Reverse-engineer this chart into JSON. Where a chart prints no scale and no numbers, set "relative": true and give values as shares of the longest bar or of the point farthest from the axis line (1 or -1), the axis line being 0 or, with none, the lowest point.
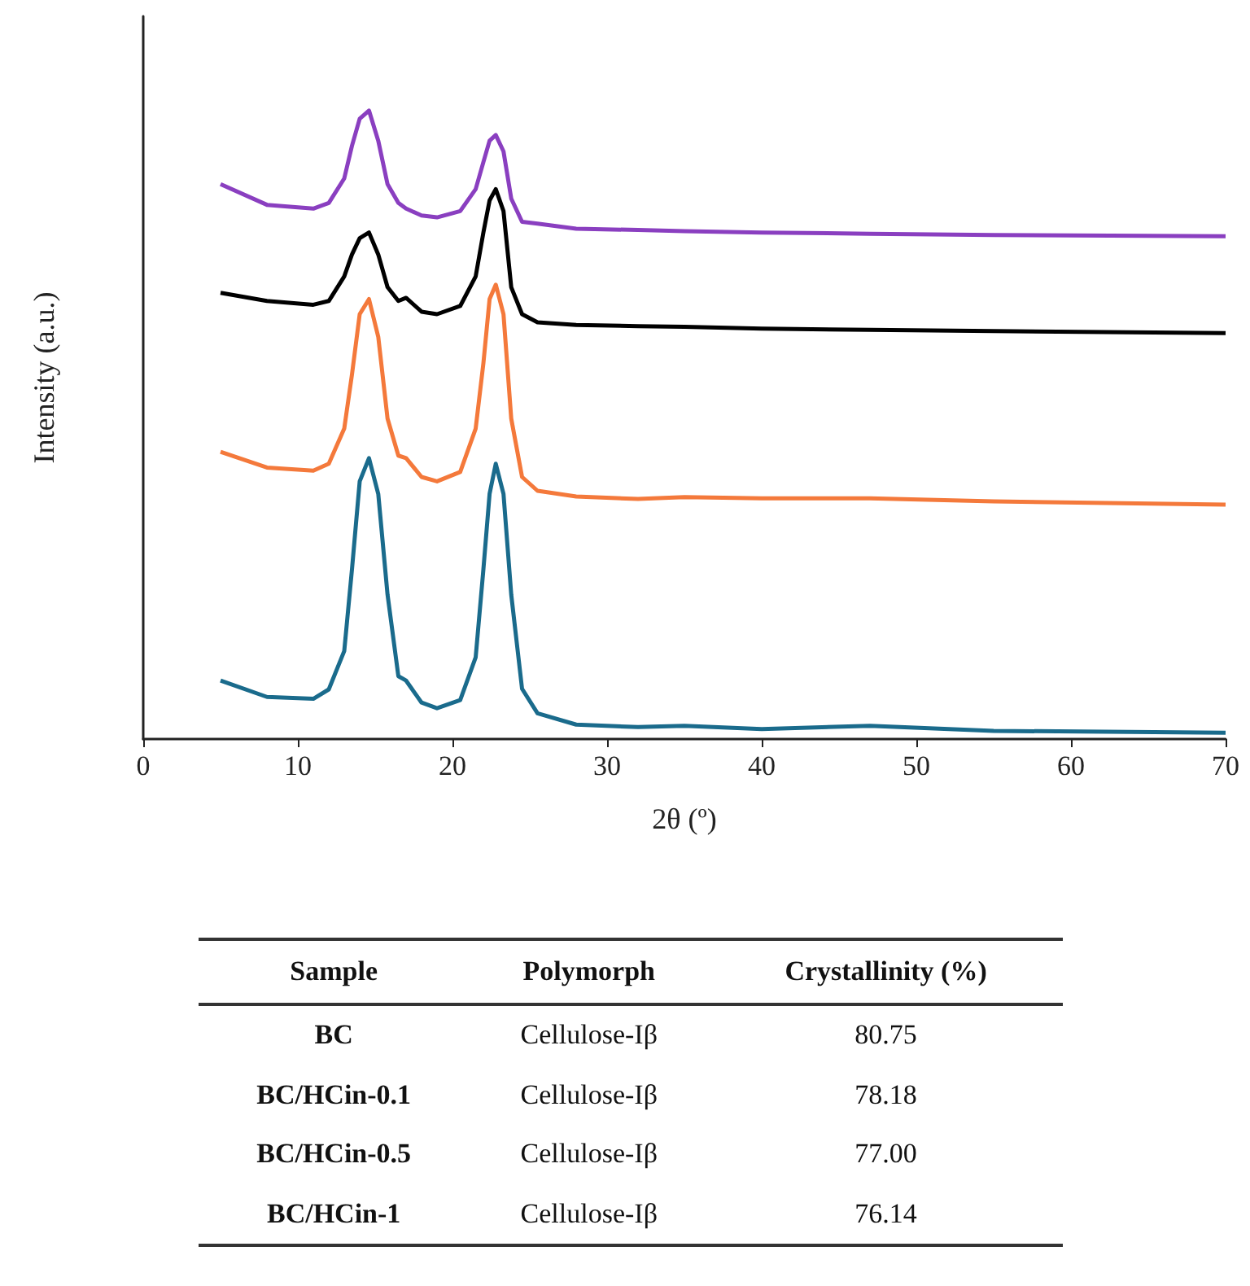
{
  "chart_data": {
    "type": "line",
    "relative": true,
    "xlabel": "2θ (º)",
    "ylabel": "Intensity (a.u.)",
    "xlim": [
      0,
      70
    ],
    "xticks": [
      0,
      10,
      20,
      30,
      40,
      50,
      60,
      70
    ],
    "grid": false,
    "marker": "none",
    "line_style": "solid",
    "x": [
      5,
      8,
      11,
      12,
      13,
      13.5,
      14,
      14.6,
      15.2,
      15.8,
      16.5,
      17,
      18,
      19,
      20.5,
      21.5,
      22,
      22.4,
      22.8,
      23.3,
      23.8,
      24.5,
      25.5,
      28,
      32,
      35,
      40,
      47,
      55,
      70
    ],
    "series": [
      {
        "color": "#1a6b8c",
        "values": [
          0.093,
          0.067,
          0.064,
          0.079,
          0.14,
          0.27,
          0.41,
          0.447,
          0.39,
          0.23,
          0.1,
          0.093,
          0.058,
          0.049,
          0.062,
          0.13,
          0.27,
          0.39,
          0.438,
          0.39,
          0.23,
          0.08,
          0.041,
          0.023,
          0.019,
          0.021,
          0.016,
          0.021,
          0.013,
          0.01
        ]
      },
      {
        "color": "#f4793b",
        "values": [
          0.457,
          0.432,
          0.427,
          0.438,
          0.494,
          0.58,
          0.676,
          0.7,
          0.64,
          0.51,
          0.451,
          0.447,
          0.417,
          0.41,
          0.425,
          0.494,
          0.598,
          0.7,
          0.723,
          0.676,
          0.51,
          0.417,
          0.395,
          0.386,
          0.382,
          0.385,
          0.383,
          0.383,
          0.378,
          0.373
        ]
      },
      {
        "color": "#000000",
        "values": [
          0.71,
          0.697,
          0.691,
          0.697,
          0.736,
          0.771,
          0.797,
          0.806,
          0.771,
          0.719,
          0.697,
          0.702,
          0.68,
          0.676,
          0.689,
          0.736,
          0.806,
          0.857,
          0.875,
          0.84,
          0.719,
          0.676,
          0.663,
          0.659,
          0.657,
          0.656,
          0.653,
          0.651,
          0.649,
          0.646
        ]
      },
      {
        "color": "#8a3fc0",
        "values": [
          0.883,
          0.85,
          0.844,
          0.853,
          0.892,
          0.944,
          0.987,
          1.0,
          0.952,
          0.883,
          0.853,
          0.844,
          0.833,
          0.83,
          0.84,
          0.875,
          0.918,
          0.952,
          0.961,
          0.935,
          0.86,
          0.823,
          0.82,
          0.812,
          0.81,
          0.808,
          0.806,
          0.804,
          0.802,
          0.8
        ]
      }
    ],
    "annotations": [
      "Sample",
      "Polymorph",
      "Crystallinity (%)",
      "BC",
      "Cellulose-Iβ",
      "80.75",
      "BC/HCin-0.1",
      "Cellulose-Iβ",
      "78.18",
      "BC/HCin-0.5",
      "Cellulose-Iβ",
      "77.00",
      "BC/HCin-1",
      "Cellulose-Iβ",
      "76.14"
    ]
  }
}
